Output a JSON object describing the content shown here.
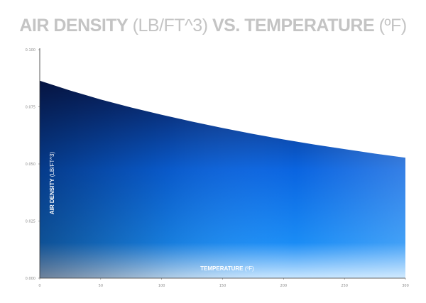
{
  "title": {
    "bold_part": "AIR DENSITY",
    "light_part": " (LB/FT^3) ",
    "bold_part2": "VS. TEMPERATURE",
    "light_part2": " (ºF)"
  },
  "chart_data": {
    "type": "area",
    "title": "AIR DENSITY (LB/FT^3) VS. TEMPERATURE (ºF)",
    "xlabel": {
      "bold": "TEMPERATURE",
      "light": " (ºF)"
    },
    "ylabel": {
      "bold": "AIR DENSITY",
      "light": " (LB/FT^3)"
    },
    "xlim": [
      0,
      300
    ],
    "ylim": [
      0,
      0.1
    ],
    "xticks": [
      0,
      50,
      100,
      150,
      200,
      250,
      300
    ],
    "xtick_labels": [
      "0",
      "50",
      "100",
      "150",
      "200",
      "250",
      "300"
    ],
    "yticks": [
      0,
      0.025,
      0.05,
      0.075,
      0.1
    ],
    "ytick_labels": [
      "0.000",
      "0.025",
      "0.050",
      "0.075",
      "0.100"
    ],
    "grid": false,
    "series": [
      {
        "x": [
          0,
          25,
          50,
          75,
          100,
          125,
          150,
          175,
          200,
          225,
          250,
          275,
          300
        ],
        "values": [
          0.0864,
          0.0821,
          0.0782,
          0.0747,
          0.0715,
          0.0685,
          0.0657,
          0.0631,
          0.0607,
          0.0585,
          0.0565,
          0.0545,
          0.0527
        ]
      }
    ],
    "colors": {
      "top": "#0a1e5c",
      "mid": "#0a64e0",
      "bottom": "#c8e6ff"
    }
  }
}
